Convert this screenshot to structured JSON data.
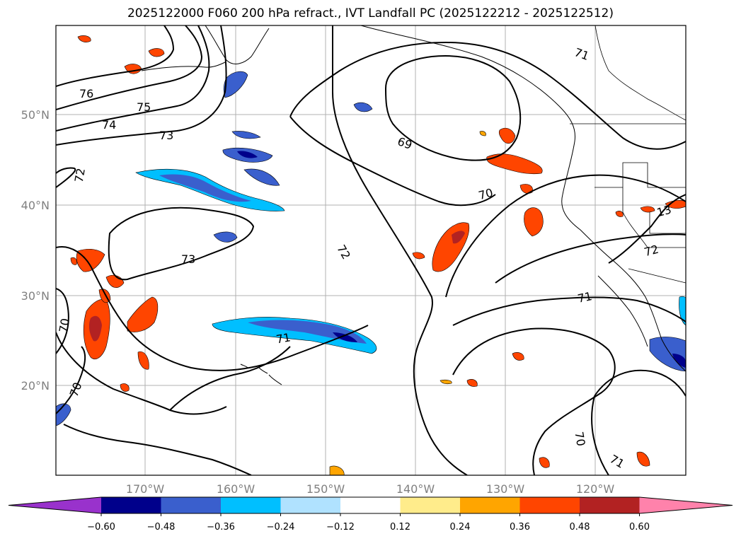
{
  "title": "2025122000 F060 200 hPa refract., IVT Landfall PC (2025122212 - 2025122512)",
  "map": {
    "lat_labels": [
      {
        "text": "50°N",
        "lat": 50
      },
      {
        "text": "40°N",
        "lat": 40
      },
      {
        "text": "30°N",
        "lat": 30
      },
      {
        "text": "20°N",
        "lat": 20
      }
    ],
    "lon_labels": [
      {
        "text": "170°W",
        "lon": -170
      },
      {
        "text": "160°W",
        "lon": -160
      },
      {
        "text": "150°W",
        "lon": -150
      },
      {
        "text": "140°W",
        "lon": -140
      },
      {
        "text": "130°W",
        "lon": -130
      },
      {
        "text": "120°W",
        "lon": -120
      }
    ],
    "contour_labels": [
      "76",
      "75",
      "74",
      "73",
      "72",
      "73",
      "70",
      "70",
      "69",
      "70",
      "72",
      "71",
      "71",
      "72",
      "13",
      "70",
      "71",
      "71"
    ]
  },
  "colorbar": {
    "colors": [
      "#9932cc",
      "#00008b",
      "#3a5fcd",
      "#00bfff",
      "#b0e2ff",
      "#ffffff",
      "#ffec8b",
      "#ffa500",
      "#ff4500",
      "#b22222",
      "#ff82ab"
    ],
    "ticks": [
      "−0.60",
      "−0.48",
      "−0.36",
      "−0.24",
      "−0.12",
      "0.12",
      "0.24",
      "0.36",
      "0.48",
      "0.60"
    ]
  }
}
